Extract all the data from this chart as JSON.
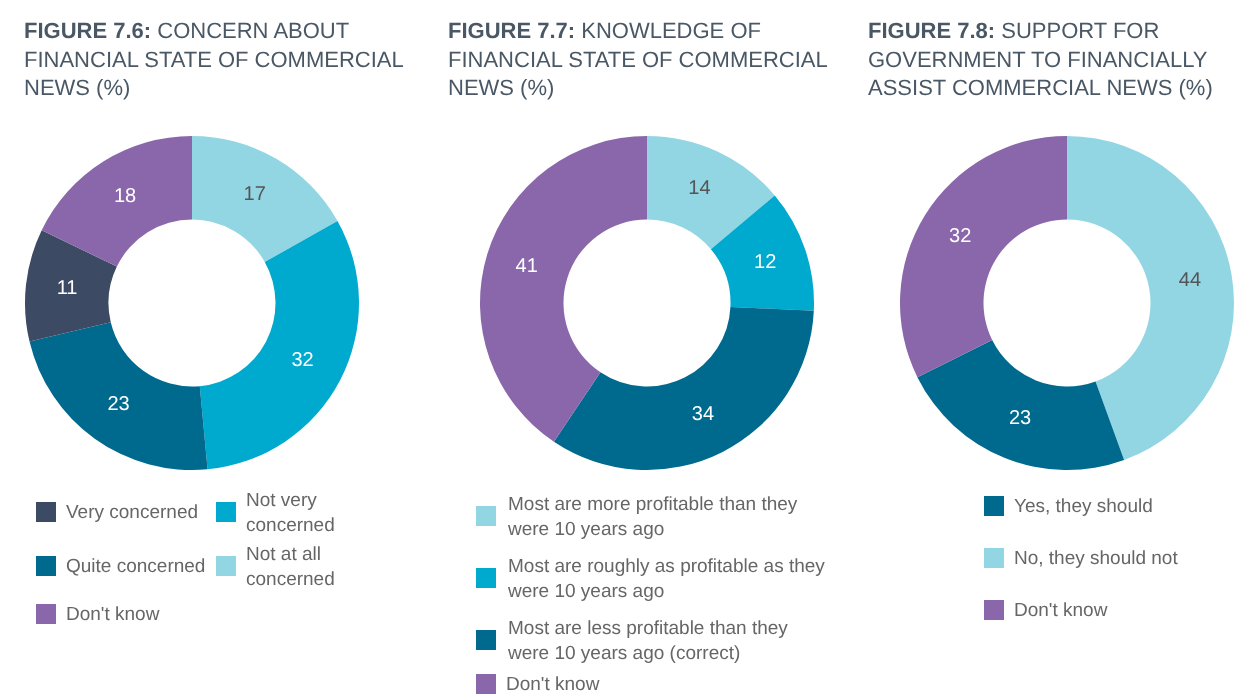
{
  "chart_data": [
    {
      "type": "donut",
      "title": "FIGURE 7.6: CONCERN ABOUT FINANCIAL STATE OF COMMERCIAL NEWS (%)",
      "categories": [
        "Not at all concerned",
        "Not very concerned",
        "Quite concerned",
        "Very concerned",
        "Don't know"
      ],
      "values": [
        17,
        32,
        23,
        11,
        18
      ],
      "colors": [
        "#93d6e3",
        "#00a9ce",
        "#006a8e",
        "#3d4a63",
        "#8a67ab"
      ],
      "data_labels": true,
      "legend": "bottom"
    },
    {
      "type": "donut",
      "title": "FIGURE 7.7: KNOWLEDGE OF FINANCIAL STATE OF COMMERCIAL NEWS (%)",
      "categories": [
        "Most are more profitable than they were 10 years ago",
        "Most are roughly as profitable as they were 10 years ago",
        "Most are less profitable than they were 10 years ago (correct)",
        "Don't know"
      ],
      "values": [
        14,
        12,
        34,
        41
      ],
      "colors": [
        "#93d6e3",
        "#00a9ce",
        "#006a8e",
        "#8a67ab"
      ],
      "data_labels": true,
      "legend": "bottom"
    },
    {
      "type": "donut",
      "title": "FIGURE 7.8: SUPPORT FOR GOVERNMENT TO FINANCIALLY ASSIST COMMERCIAL NEWS (%)",
      "categories": [
        "No, they should not",
        "Yes, they should",
        "Don't know"
      ],
      "values": [
        44,
        23,
        32
      ],
      "colors": [
        "#93d6e3",
        "#006a8e",
        "#8a67ab"
      ],
      "data_labels": true,
      "legend": "bottom"
    }
  ]
}
